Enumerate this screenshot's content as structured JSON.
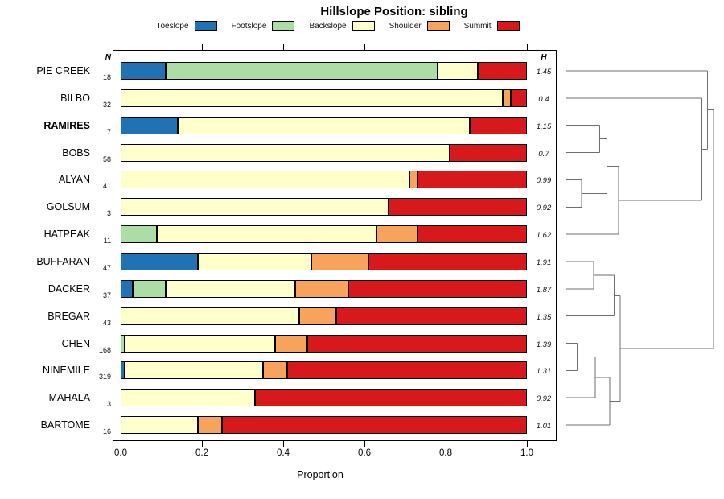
{
  "title": "Hillslope Position: sibling",
  "legend": {
    "items": [
      {
        "label": "Toeslope",
        "color": "#2171B5"
      },
      {
        "label": "Footslope",
        "color": "#ABDDA4"
      },
      {
        "label": "Backslope",
        "color": "#FFFFCC"
      },
      {
        "label": "Shoulder",
        "color": "#F7A35C"
      },
      {
        "label": "Summit",
        "color": "#D7191C"
      }
    ]
  },
  "columns": {
    "n_header": "N",
    "h_header": "H"
  },
  "axis": {
    "xlabel": "Proportion",
    "ticks": [
      0.0,
      0.2,
      0.4,
      0.6,
      0.8,
      1.0
    ],
    "tick_labels": [
      "0.0",
      "0.2",
      "0.4",
      "0.6",
      "0.8",
      "1.0"
    ]
  },
  "chart_data": {
    "type": "bar",
    "orientation": "horizontal-stacked",
    "title": "Hillslope Position: sibling",
    "xlabel": "Proportion",
    "xlim": [
      0,
      1
    ],
    "legend_position": "top",
    "grid": false,
    "categories": [
      "PIE CREEK",
      "BILBO",
      "RAMIRES",
      "BOBS",
      "ALYAN",
      "GOLSUM",
      "HATPEAK",
      "BUFFARAN",
      "DACKER",
      "BREGAR",
      "CHEN",
      "NINEMILE",
      "MAHALA",
      "BARTOME"
    ],
    "bold_category": "RAMIRES",
    "n_values": [
      18,
      32,
      7,
      58,
      41,
      3,
      11,
      47,
      37,
      43,
      168,
      319,
      3,
      16
    ],
    "h_values": [
      "1.45",
      "0.4",
      "1.15",
      "0.7",
      "0.99",
      "0.92",
      "1.62",
      "1.91",
      "1.87",
      "1.35",
      "1.39",
      "1.31",
      "0.92",
      "1.01"
    ],
    "series": [
      {
        "name": "Toeslope",
        "color": "#2171B5",
        "values": [
          0.11,
          0,
          0.14,
          0,
          0,
          0,
          0,
          0.19,
          0.03,
          0,
          0,
          0.01,
          0,
          0
        ]
      },
      {
        "name": "Footslope",
        "color": "#ABDDA4",
        "values": [
          0.67,
          0,
          0,
          0,
          0,
          0,
          0.09,
          0,
          0.08,
          0,
          0.01,
          0,
          0,
          0
        ]
      },
      {
        "name": "Backslope",
        "color": "#FFFFCC",
        "values": [
          0.1,
          0.94,
          0.72,
          0.81,
          0.71,
          0.66,
          0.54,
          0.28,
          0.32,
          0.44,
          0.37,
          0.34,
          0.33,
          0.19
        ]
      },
      {
        "name": "Shoulder",
        "color": "#F7A35C",
        "values": [
          0,
          0.02,
          0,
          0,
          0.02,
          0,
          0.1,
          0.14,
          0.13,
          0.09,
          0.08,
          0.06,
          0,
          0.06
        ]
      },
      {
        "name": "Summit",
        "color": "#D7191C",
        "values": [
          0.12,
          0.04,
          0.14,
          0.19,
          0.27,
          0.34,
          0.27,
          0.39,
          0.44,
          0.47,
          0.54,
          0.59,
          0.67,
          0.75
        ]
      }
    ],
    "dendrogram": {
      "line_color": "#6e6e6e",
      "tree": {
        "h": 1.0,
        "children": [
          {
            "h": 0.96,
            "children": [
              {
                "leaf": 0
              },
              {
                "h": 0.92,
                "children": [
                  {
                    "leaf": 1
                  },
                  {
                    "h": 0.36,
                    "children": [
                      {
                        "h": 0.28,
                        "children": [
                          {
                            "h": 0.23,
                            "children": [
                              {
                                "leaf": 2
                              },
                              {
                                "leaf": 3
                              }
                            ]
                          },
                          {
                            "h": 0.11,
                            "children": [
                              {
                                "leaf": 4
                              },
                              {
                                "leaf": 5
                              }
                            ]
                          }
                        ]
                      },
                      {
                        "leaf": 6
                      }
                    ]
                  }
                ]
              }
            ]
          },
          {
            "h": 0.37,
            "children": [
              {
                "h": 0.33,
                "children": [
                  {
                    "h": 0.19,
                    "children": [
                      {
                        "leaf": 7
                      },
                      {
                        "leaf": 8
                      }
                    ]
                  },
                  {
                    "leaf": 9
                  }
                ]
              },
              {
                "h": 0.3,
                "children": [
                  {
                    "h": 0.2,
                    "children": [
                      {
                        "h": 0.08,
                        "children": [
                          {
                            "leaf": 10
                          },
                          {
                            "leaf": 11
                          }
                        ]
                      },
                      {
                        "leaf": 12
                      }
                    ]
                  },
                  {
                    "leaf": 13
                  }
                ]
              }
            ]
          }
        ]
      }
    }
  }
}
